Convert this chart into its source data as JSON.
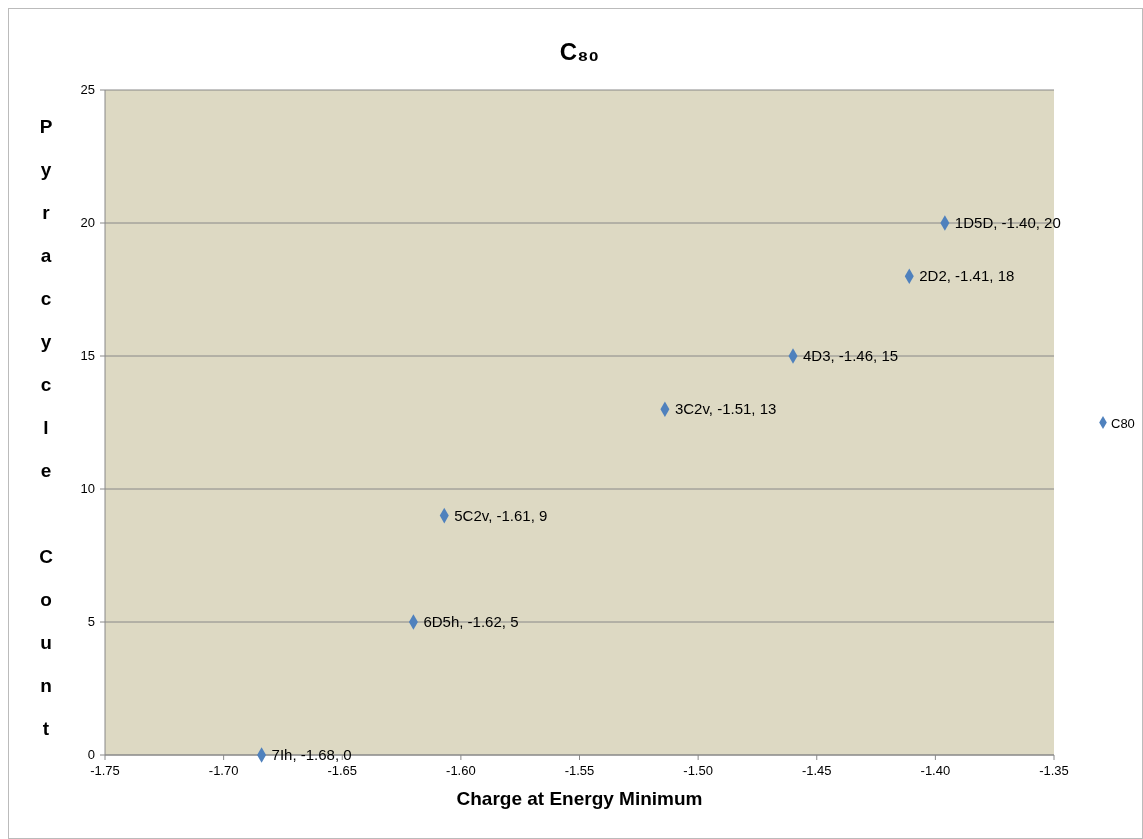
{
  "chart_data": {
    "type": "scatter",
    "title": "C₈₀",
    "xlabel": "Charge at Energy Minimum",
    "ylabel": "Pyracycle Count",
    "series": [
      {
        "name": "C80",
        "color": "#4f81bd",
        "x": [
          -1.396,
          -1.411,
          -1.46,
          -1.514,
          -1.607,
          -1.62,
          -1.684
        ],
        "values": [
          20,
          18,
          15,
          13,
          9,
          5,
          0
        ],
        "value_labels": [
          "1D5D, -1.40, 20",
          "2D2, -1.41, 18",
          "4D3, -1.46, 15",
          "3C2v, -1.51, 13",
          "5C2v, -1.61, 9",
          "6D5h, -1.62, 5",
          "7Ih, -1.68, 0"
        ]
      }
    ],
    "xlim": [
      -1.75,
      -1.35
    ],
    "xticks": [
      {
        "value": -1.75,
        "label": "-1.75"
      },
      {
        "value": -1.7,
        "label": "-1.70"
      },
      {
        "value": -1.65,
        "label": "-1.65"
      },
      {
        "value": -1.6,
        "label": "-1.60"
      },
      {
        "value": -1.55,
        "label": "-1.55"
      },
      {
        "value": -1.5,
        "label": "-1.50"
      },
      {
        "value": -1.45,
        "label": "-1.45"
      },
      {
        "value": -1.4,
        "label": "-1.40"
      },
      {
        "value": -1.35,
        "label": "-1.35"
      }
    ],
    "ylim": [
      0,
      25
    ],
    "yticks": [
      0,
      5,
      10,
      15,
      20,
      25
    ],
    "grid": "y",
    "legend": "right",
    "marker": "diamond"
  }
}
